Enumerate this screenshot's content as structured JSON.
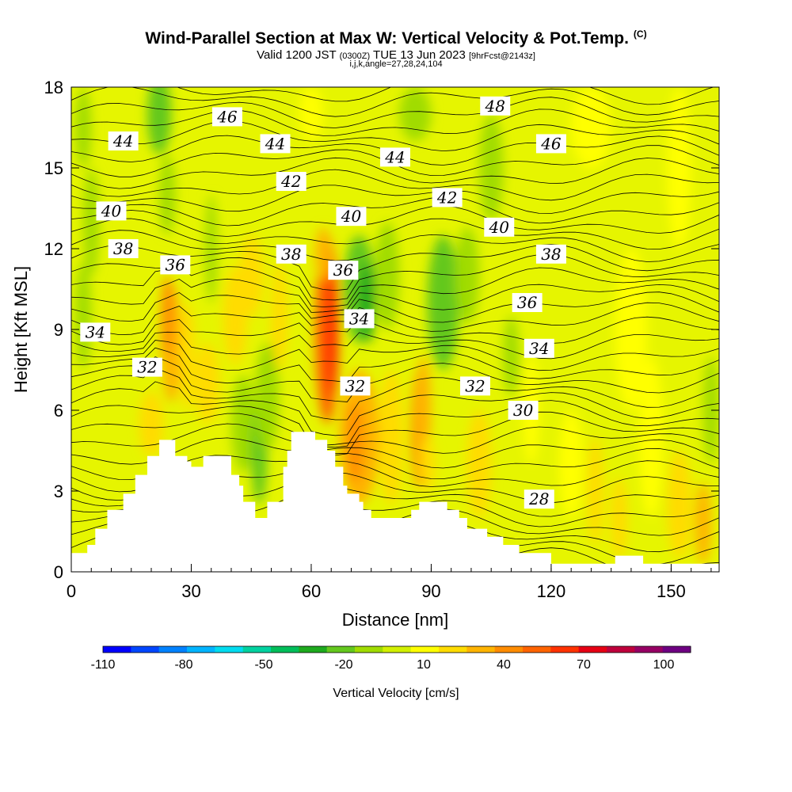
{
  "header": {
    "title": "Wind-Parallel Section at Max W: Vertical Velocity & Pot.Temp.",
    "copyright": "(C)",
    "valid_prefix": "Valid 1200 JST",
    "valid_zulu": "(0300Z)",
    "valid_date": "TUE 13 Jun 2023",
    "forecast": "[9hrFcst@2143z]",
    "indices": "i,j,k,angle=27,28,24,104"
  },
  "chart_data": {
    "type": "heatmap",
    "description_fields": "vertical velocity (color fill) with potential temperature contours (black lines) over terrain",
    "xlabel": "Distance [nm]",
    "ylabel": "Height [Kft MSL]",
    "xlim": [
      0,
      162
    ],
    "ylim": [
      0,
      18
    ],
    "x_ticks": [
      0,
      30,
      60,
      90,
      120,
      150
    ],
    "y_ticks": [
      0,
      3,
      6,
      9,
      12,
      15,
      18
    ],
    "colorbar": {
      "label": "Vertical Velocity [cm/s]",
      "tick_labels": [
        "-110",
        "-80",
        "-50",
        "-20",
        "10",
        "40",
        "70",
        "100"
      ],
      "tick_values": [
        -110,
        -80,
        -50,
        -20,
        10,
        40,
        70,
        100
      ],
      "colors": [
        "#0000ff",
        "#0046ff",
        "#0082ff",
        "#00b4ff",
        "#00dcf0",
        "#00d2a0",
        "#00be5a",
        "#1eaa1e",
        "#64c81e",
        "#a0dc00",
        "#d2f000",
        "#ffff00",
        "#ffdc00",
        "#ffb400",
        "#ff8c00",
        "#ff6400",
        "#ff3200",
        "#e60014",
        "#be003c",
        "#960064",
        "#6e0082"
      ]
    },
    "theta_contour_labels": [
      {
        "value": "28",
        "x": 117,
        "y": 2.7
      },
      {
        "value": "30",
        "x": 113,
        "y": 6
      },
      {
        "value": "32",
        "x": 19,
        "y": 7.6
      },
      {
        "value": "32",
        "x": 71,
        "y": 6.9
      },
      {
        "value": "32",
        "x": 101,
        "y": 6.9
      },
      {
        "value": "34",
        "x": 6,
        "y": 8.9
      },
      {
        "value": "34",
        "x": 72,
        "y": 9.4
      },
      {
        "value": "34",
        "x": 117,
        "y": 8.3
      },
      {
        "value": "36",
        "x": 26,
        "y": 11.4
      },
      {
        "value": "36",
        "x": 68,
        "y": 11.2
      },
      {
        "value": "36",
        "x": 114,
        "y": 10
      },
      {
        "value": "38",
        "x": 13,
        "y": 12
      },
      {
        "value": "38",
        "x": 55,
        "y": 11.8
      },
      {
        "value": "38",
        "x": 120,
        "y": 11.8
      },
      {
        "value": "40",
        "x": 10,
        "y": 13.4
      },
      {
        "value": "40",
        "x": 70,
        "y": 13.2
      },
      {
        "value": "40",
        "x": 107,
        "y": 12.8
      },
      {
        "value": "42",
        "x": 55,
        "y": 14.5
      },
      {
        "value": "42",
        "x": 94,
        "y": 13.9
      },
      {
        "value": "44",
        "x": 13,
        "y": 16
      },
      {
        "value": "44",
        "x": 51,
        "y": 15.9
      },
      {
        "value": "44",
        "x": 81,
        "y": 15.4
      },
      {
        "value": "46",
        "x": 39,
        "y": 16.9
      },
      {
        "value": "46",
        "x": 120,
        "y": 15.9
      },
      {
        "value": "48",
        "x": 106,
        "y": 17.3
      }
    ],
    "terrain_kft": [
      [
        0,
        0.7
      ],
      [
        3,
        0.7
      ],
      [
        4,
        1.0
      ],
      [
        6,
        1.6
      ],
      [
        9,
        2.3
      ],
      [
        13,
        2.9
      ],
      [
        16,
        3.6
      ],
      [
        19,
        4.3
      ],
      [
        22,
        4.9
      ],
      [
        26,
        4.3
      ],
      [
        29,
        4.1
      ],
      [
        30,
        3.9
      ],
      [
        33,
        4.3
      ],
      [
        39,
        4.3
      ],
      [
        40,
        3.6
      ],
      [
        42,
        3.2
      ],
      [
        43,
        2.6
      ],
      [
        45,
        2.6
      ],
      [
        46,
        2.0
      ],
      [
        48,
        2.0
      ],
      [
        49,
        2.6
      ],
      [
        52,
        2.6
      ],
      [
        53,
        3.9
      ],
      [
        54,
        4.5
      ],
      [
        55,
        5.2
      ],
      [
        60,
        5.2
      ],
      [
        61,
        4.9
      ],
      [
        64,
        4.5
      ],
      [
        66,
        3.9
      ],
      [
        68,
        3.2
      ],
      [
        69,
        2.9
      ],
      [
        72,
        2.6
      ],
      [
        73,
        2.3
      ],
      [
        75,
        2.0
      ],
      [
        84,
        2.0
      ],
      [
        85,
        2.3
      ],
      [
        87,
        2.6
      ],
      [
        92,
        2.6
      ],
      [
        94,
        2.3
      ],
      [
        97,
        2.0
      ],
      [
        99,
        1.6
      ],
      [
        104,
        1.3
      ],
      [
        108,
        1.0
      ],
      [
        112,
        0.7
      ],
      [
        119,
        0.7
      ],
      [
        120,
        0.3
      ],
      [
        130,
        0.3
      ],
      [
        133,
        0.3
      ],
      [
        136,
        0.6
      ],
      [
        142,
        0.6
      ],
      [
        143,
        0.3
      ],
      [
        162,
        0.3
      ]
    ]
  }
}
